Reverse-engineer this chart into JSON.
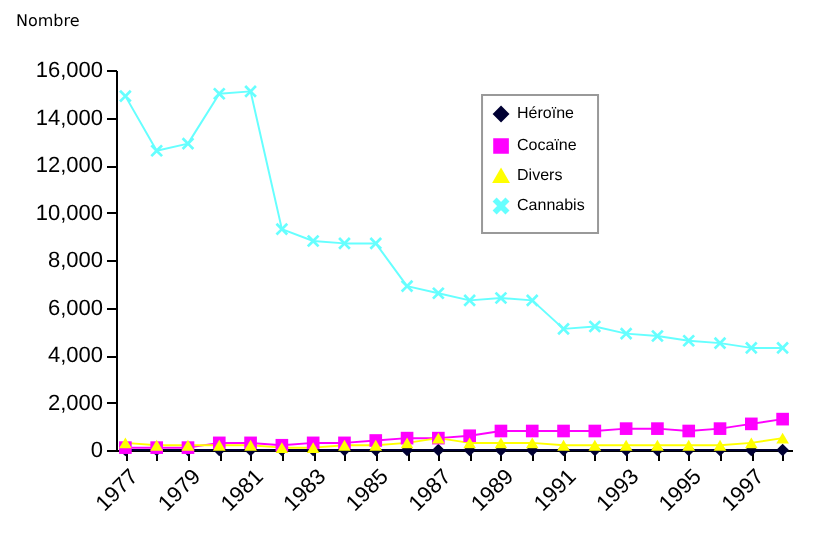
{
  "chart_data": {
    "type": "line",
    "ylabel": "Nombre",
    "categories": [
      "1977",
      null,
      "1979",
      null,
      "1981",
      null,
      "1983",
      null,
      "1985",
      null,
      "1987",
      null,
      "1989",
      null,
      "1991",
      null,
      "1993",
      null,
      "1995",
      null,
      "1997",
      null
    ],
    "series": [
      {
        "name": "Héroïne",
        "color": "#000033",
        "marker": "diamond",
        "values": [
          0,
          0,
          0,
          0,
          0,
          0,
          0,
          0,
          0,
          0,
          0,
          0,
          0,
          0,
          0,
          0,
          0,
          0,
          0,
          0,
          0,
          0
        ]
      },
      {
        "name": "Cocaïne",
        "color": "#ff00ff",
        "marker": "square",
        "values": [
          100,
          100,
          100,
          300,
          300,
          200,
          300,
          300,
          400,
          500,
          500,
          600,
          800,
          800,
          800,
          800,
          900,
          900,
          800,
          900,
          1100,
          1300
        ]
      },
      {
        "name": "Divers",
        "color": "#ffff00",
        "marker": "triangle",
        "values": [
          300,
          200,
          200,
          200,
          200,
          100,
          100,
          200,
          200,
          300,
          500,
          300,
          300,
          300,
          200,
          200,
          200,
          200,
          200,
          200,
          300,
          500
        ]
      },
      {
        "name": "Cannabis",
        "color": "#66ffff",
        "marker": "cross",
        "values": [
          14900,
          12600,
          12900,
          15000,
          15100,
          9300,
          8800,
          8700,
          8700,
          6900,
          6600,
          6300,
          6400,
          6300,
          5100,
          5200,
          4900,
          4800,
          4600,
          4500,
          4300,
          4300
        ]
      }
    ],
    "ylim": [
      0,
      16000
    ],
    "yticks": [
      {
        "value": 0,
        "label": "0"
      },
      {
        "value": 2000,
        "label": "2,000"
      },
      {
        "value": 4000,
        "label": "4,000"
      },
      {
        "value": 6000,
        "label": "6,000"
      },
      {
        "value": 8000,
        "label": "8,000"
      },
      {
        "value": 10000,
        "label": "10,000"
      },
      {
        "value": 12000,
        "label": "12,000"
      },
      {
        "value": 14000,
        "label": "14,000"
      },
      {
        "value": 16000,
        "label": "16,000"
      }
    ],
    "grid": false,
    "legend": "top right"
  }
}
